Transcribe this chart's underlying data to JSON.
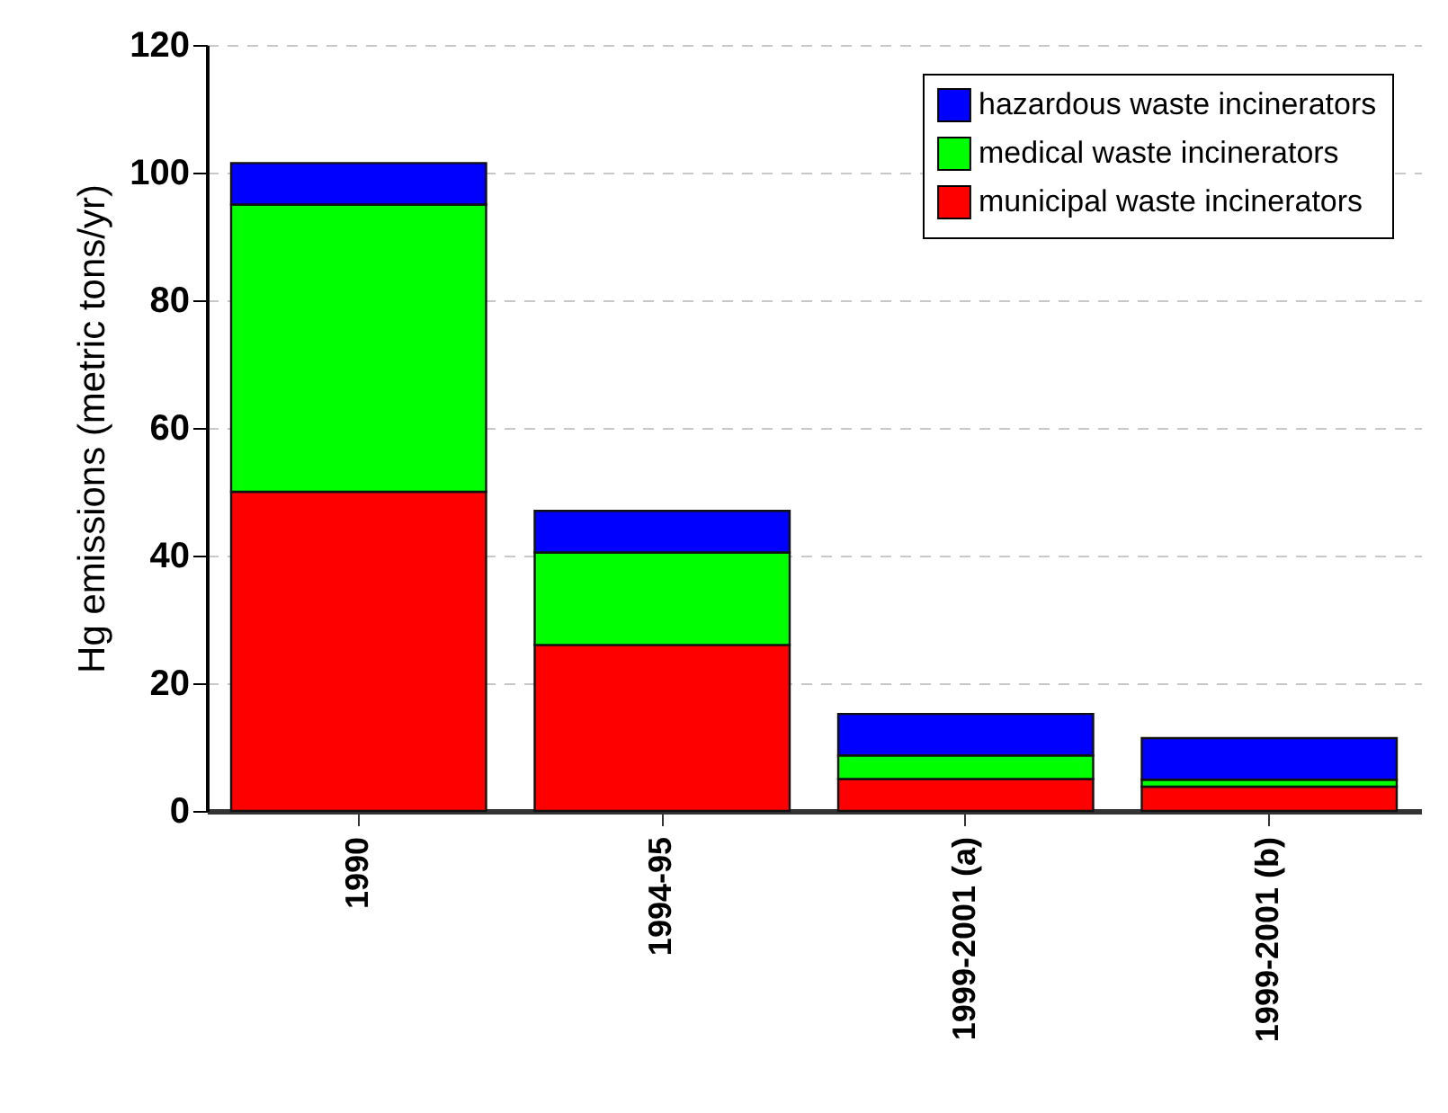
{
  "chart_data": {
    "type": "bar",
    "ylabel": "Hg emissions (metric tons/yr)",
    "categories": [
      "1990",
      "1994-95",
      "1999-2001 (a)",
      "1999-2001 (b)"
    ],
    "series": [
      {
        "name": "municipal waste incinerators",
        "color": "#ff0000",
        "values": [
          50,
          26,
          5,
          3.8
        ]
      },
      {
        "name": "medical waste incinerators",
        "color": "#00ff00",
        "values": [
          45,
          14.5,
          3.7,
          1.1
        ]
      },
      {
        "name": "hazardous waste incinerators",
        "color": "#0000ff",
        "values": [
          6.5,
          6.5,
          6.5,
          6.5
        ]
      }
    ],
    "stacked": true,
    "ylim": [
      0,
      120
    ],
    "yticks": [
      0,
      20,
      40,
      60,
      80,
      100,
      120
    ],
    "grid": "y",
    "legend": "top right"
  }
}
